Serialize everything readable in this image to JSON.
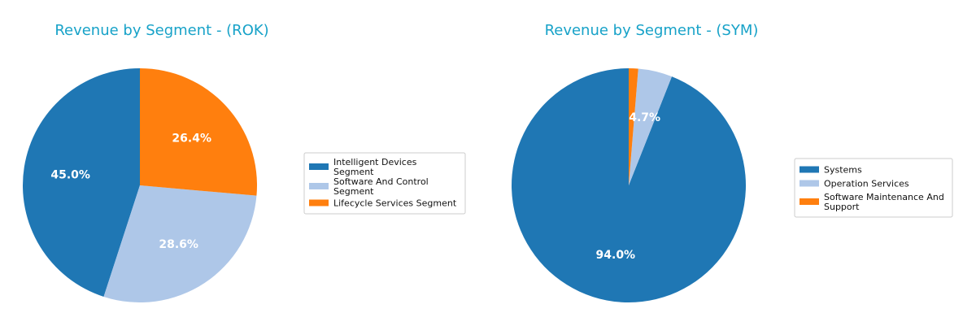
{
  "chart_data": [
    {
      "type": "pie",
      "title": "Revenue by Segment - (ROK)",
      "legend_position": "right",
      "slices": [
        {
          "label": [
            "Intelligent Devices",
            "Segment"
          ],
          "value": 45.0,
          "pct_label": "45.0%",
          "color": "#1f77b4"
        },
        {
          "label": [
            "Software And Control",
            "Segment"
          ],
          "value": 28.6,
          "pct_label": "28.6%",
          "color": "#aec7e8"
        },
        {
          "label": [
            "Lifecycle Services Segment"
          ],
          "value": 26.4,
          "pct_label": "26.4%",
          "color": "#ff7f0e"
        }
      ]
    },
    {
      "type": "pie",
      "title": "Revenue by Segment - (SYM)",
      "legend_position": "right",
      "slices": [
        {
          "label": [
            "Systems"
          ],
          "value": 94.0,
          "pct_label": "94.0%",
          "color": "#1f77b4"
        },
        {
          "label": [
            "Operation Services"
          ],
          "value": 4.7,
          "pct_label": "4.7%",
          "color": "#aec7e8"
        },
        {
          "label": [
            "Software Maintenance And",
            "Support"
          ],
          "value": 1.3,
          "pct_label": "",
          "color": "#ff7f0e"
        }
      ]
    }
  ]
}
